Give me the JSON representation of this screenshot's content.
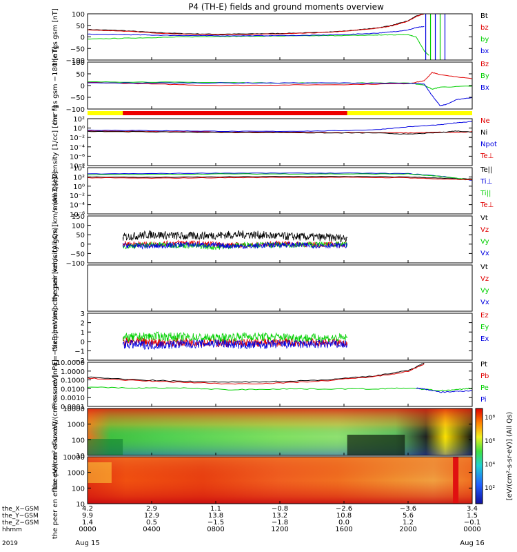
{
  "title": "P4 (TH-E) fields and ground moments overview",
  "colors": {
    "black": "#000000",
    "red": "#e00000",
    "green": "#00d000",
    "blue": "#0000e0",
    "yellow": "#ffff00",
    "barred": "#ee0000"
  },
  "chart_data": [
    {
      "type": "line",
      "ylabel": "the fgs gsm [nT]",
      "yticks": [
        "100",
        "50",
        "0",
        "−50",
        "−100"
      ],
      "ylim": [
        -100,
        100
      ],
      "series": [
        {
          "name": "Bt",
          "color": "#000000",
          "x": [
            0,
            2,
            4,
            6,
            8,
            10,
            12,
            14,
            16,
            18,
            19,
            20,
            20.5,
            21
          ],
          "y": [
            32,
            28,
            20,
            14,
            12,
            13,
            15,
            18,
            25,
            38,
            50,
            70,
            90,
            100
          ]
        },
        {
          "name": "bz",
          "color": "#e00000",
          "x": [
            0,
            2,
            4,
            6,
            8,
            10,
            12,
            14,
            16,
            18,
            19,
            20,
            20.5,
            21
          ],
          "y": [
            30,
            26,
            18,
            12,
            10,
            11,
            13,
            17,
            24,
            37,
            48,
            68,
            88,
            100
          ]
        },
        {
          "name": "by",
          "color": "#00d000",
          "x": [
            0,
            2,
            4,
            6,
            8,
            10,
            12,
            14,
            16,
            18,
            19,
            20,
            20.5,
            21,
            21.3
          ],
          "y": [
            -10,
            -6,
            -3,
            0,
            2,
            3,
            4,
            5,
            6,
            8,
            9,
            10,
            0,
            -60,
            -80
          ]
        },
        {
          "name": "bx",
          "color": "#0000e0",
          "x": [
            0,
            2,
            4,
            6,
            8,
            10,
            12,
            14,
            16,
            18,
            19,
            20,
            20.5,
            21
          ],
          "y": [
            12,
            10,
            8,
            6,
            5,
            5,
            6,
            7,
            10,
            16,
            22,
            30,
            40,
            45
          ]
        }
      ]
    },
    {
      "type": "line",
      "ylabel": "the fgs gsm −180 [nT]",
      "yticks": [
        "100",
        "50",
        "0",
        "−50",
        "−100"
      ],
      "ylim": [
        -125,
        100
      ],
      "series": [
        {
          "name": "Bz",
          "color": "#e00000",
          "x": [
            0,
            4,
            8,
            12,
            16,
            20,
            21,
            21.5,
            22,
            24
          ],
          "y": [
            3,
            -5,
            -12,
            -10,
            -8,
            -3,
            10,
            50,
            40,
            20
          ]
        },
        {
          "name": "By",
          "color": "#00d000",
          "x": [
            0,
            4,
            8,
            12,
            16,
            20,
            21,
            21.5,
            22,
            24
          ],
          "y": [
            5,
            4,
            2,
            0,
            0,
            0,
            -10,
            -30,
            -20,
            -15
          ]
        },
        {
          "name": "Bx",
          "color": "#0000e0",
          "x": [
            0,
            4,
            8,
            12,
            16,
            20,
            21,
            21.5,
            22,
            22.5,
            23,
            24
          ],
          "y": [
            0,
            0,
            0,
            0,
            0,
            -2,
            -5,
            -60,
            -110,
            -100,
            -80,
            -70
          ]
        }
      ]
    },
    {
      "type": "line",
      "ylabel": "Density [1/cc] [cm⁻³]",
      "yticks": [
        "10²",
        "10⁰",
        "10⁻²",
        "10⁻⁴",
        "10⁻⁶",
        "10⁻⁸"
      ],
      "ylim": [
        -9,
        2.5
      ],
      "log": true,
      "series": [
        {
          "name": "Ne",
          "color": "#e00000",
          "x": [
            0,
            3,
            6,
            9,
            12,
            15,
            18,
            20,
            22,
            23,
            24
          ],
          "y": [
            -0.5,
            -0.6,
            -0.7,
            -0.8,
            -0.8,
            -0.9,
            -0.9,
            -1.0,
            -0.8,
            -0.9,
            -0.7
          ]
        },
        {
          "name": "Ni",
          "color": "#000000",
          "x": [
            0,
            3,
            6,
            9,
            12,
            15,
            18,
            20,
            22,
            23,
            24
          ],
          "y": [
            -0.6,
            -0.7,
            -0.8,
            -0.9,
            -0.9,
            -1.0,
            -1.0,
            -1.3,
            -0.9,
            -0.5,
            -0.8
          ]
        },
        {
          "name": "Npot",
          "color": "#0000e0",
          "x": [
            0,
            3,
            6,
            9,
            12,
            15,
            18,
            20,
            22,
            23,
            24
          ],
          "y": [
            -0.3,
            -0.4,
            -0.5,
            -0.6,
            -0.6,
            -0.5,
            -0.2,
            0.5,
            1.0,
            1.5,
            1.8
          ]
        },
        {
          "name": "Te⊥",
          "color": "#e00000",
          "x": [],
          "y": []
        }
      ]
    },
    {
      "type": "line",
      "ylabel": "mom3 [eV]",
      "yticks": [
        "10⁴",
        "10²",
        "10⁰",
        "10⁻²",
        "10⁻⁴",
        "10⁻⁶"
      ],
      "ylim": [
        -6.5,
        4.5
      ],
      "log": true,
      "series": [
        {
          "name": "Te||",
          "color": "#000000",
          "x": [
            0,
            4,
            8,
            12,
            16,
            20,
            22,
            24
          ],
          "y": [
            2.3,
            2.2,
            2.3,
            2.4,
            2.4,
            2.3,
            2.0,
            1.8
          ]
        },
        {
          "name": "Ti⊥",
          "color": "#0000e0",
          "x": [
            0,
            4,
            8,
            12,
            16,
            20,
            22,
            24
          ],
          "y": [
            3.0,
            3.1,
            3.2,
            3.2,
            3.2,
            3.1,
            2.5,
            1.5
          ]
        },
        {
          "name": "Ti||",
          "color": "#00d000",
          "x": [
            0,
            4,
            8,
            12,
            16,
            20,
            22,
            24
          ],
          "y": [
            2.8,
            2.9,
            3.0,
            3.0,
            3.0,
            3.0,
            2.4,
            1.6
          ]
        },
        {
          "name": "Te⊥",
          "color": "#e00000",
          "x": [
            0,
            4,
            8,
            12,
            16,
            20,
            22,
            24
          ],
          "y": [
            2.1,
            2.0,
            2.1,
            2.2,
            2.2,
            2.1,
            1.8,
            1.6
          ]
        }
      ]
    },
    {
      "type": "line",
      "ylabel": "the peir velocity gsm [km/s (All Qs)]",
      "yticks": [
        "150",
        "100",
        "50",
        "0",
        "−50",
        "−100"
      ],
      "ylim": [
        -100,
        155
      ],
      "series": [
        {
          "name": "Vt",
          "color": "#000000",
          "x": [
            2.2,
            4,
            6,
            8,
            10,
            12,
            14,
            16.2
          ],
          "y": [
            40,
            55,
            45,
            50,
            55,
            45,
            40,
            35
          ]
        },
        {
          "name": "Vz",
          "color": "#e00000",
          "x": [
            2.2,
            4,
            6,
            8,
            10,
            12,
            14,
            16.2
          ],
          "y": [
            5,
            0,
            10,
            0,
            -5,
            5,
            0,
            0
          ]
        },
        {
          "name": "Vy",
          "color": "#00d000",
          "x": [
            2.2,
            4,
            6,
            8,
            10,
            12,
            14,
            16.2
          ],
          "y": [
            -10,
            0,
            -5,
            -15,
            0,
            -5,
            0,
            0
          ]
        },
        {
          "name": "Vx",
          "color": "#0000e0",
          "x": [
            2.2,
            4,
            6,
            8,
            10,
            12,
            14,
            16.2
          ],
          "y": [
            -5,
            -10,
            0,
            -5,
            -10,
            0,
            -5,
            -5
          ]
        }
      ]
    },
    {
      "type": "line",
      "ylabel": "the peer velocity gsm [km/s (All Qs)]",
      "yticks": [],
      "ylim": [
        -100,
        155
      ],
      "series": [
        {
          "name": "Vt",
          "color": "#000000",
          "x": [],
          "y": []
        },
        {
          "name": "Vz",
          "color": "#e00000",
          "x": [],
          "y": []
        },
        {
          "name": "Vy",
          "color": "#00d000",
          "x": [],
          "y": []
        },
        {
          "name": "Vx",
          "color": "#0000e0",
          "x": [],
          "y": []
        }
      ]
    },
    {
      "type": "line",
      "ylabel": "E=−VxB [mV/m]",
      "yticks": [
        "3",
        "2",
        "1",
        "0",
        "−1",
        "−2"
      ],
      "ylim": [
        -2,
        3.3
      ],
      "series": [
        {
          "name": "Ez",
          "color": "#e00000",
          "x": [
            2.2,
            4,
            6,
            8,
            10,
            12,
            14,
            16.2
          ],
          "y": [
            0.1,
            0.0,
            0.05,
            0.0,
            -0.05,
            0.0,
            0.0,
            0.0
          ]
        },
        {
          "name": "Ey",
          "color": "#00d000",
          "x": [
            2.2,
            4,
            6,
            8,
            10,
            12,
            14,
            16.2
          ],
          "y": [
            0.5,
            0.7,
            0.6,
            0.5,
            0.7,
            0.6,
            0.5,
            0.5
          ]
        },
        {
          "name": "Ex",
          "color": "#0000e0",
          "x": [
            2.2,
            4,
            6,
            8,
            10,
            12,
            14,
            16.2
          ],
          "y": [
            -0.2,
            -0.3,
            -0.2,
            -0.1,
            -0.3,
            -0.2,
            -0.2,
            -0.2
          ]
        }
      ]
    },
    {
      "type": "line",
      "ylabel": "Pressure [nPa]",
      "yticks": [
        "10.0000",
        "1.0000",
        "0.1000",
        "0.0100",
        "0.0010",
        "0.0001"
      ],
      "ylim": [
        -4,
        1.3
      ],
      "log": true,
      "series": [
        {
          "name": "Pt",
          "color": "#000000",
          "x": [
            0,
            3,
            6,
            9,
            12,
            15,
            18,
            20,
            21
          ],
          "y": [
            -0.5,
            -0.8,
            -1.0,
            -1.1,
            -1.0,
            -0.8,
            -0.3,
            0.3,
            1.2
          ]
        },
        {
          "name": "Pb",
          "color": "#e00000",
          "x": [
            0,
            3,
            6,
            9,
            12,
            15,
            18,
            20,
            21
          ],
          "y": [
            -0.6,
            -0.9,
            -1.1,
            -1.3,
            -1.2,
            -0.9,
            -0.4,
            0.2,
            1.1
          ]
        },
        {
          "name": "Pe",
          "color": "#00d000",
          "x": [
            0,
            3,
            6,
            9,
            12,
            15,
            18,
            20,
            22,
            23,
            24
          ],
          "y": [
            -1.7,
            -1.8,
            -1.8,
            -2.0,
            -1.9,
            -1.9,
            -1.9,
            -1.8,
            -2.1,
            -2.0,
            -1.8
          ]
        },
        {
          "name": "Pi",
          "color": "#0000e0",
          "x": [
            20.5,
            21,
            22,
            23,
            24
          ],
          "y": [
            -1.8,
            -1.9,
            -2.3,
            -2.2,
            -2.1
          ]
        }
      ]
    },
    {
      "type": "heatmap",
      "ylabel": "the peir en eflux eV/(cm²-s-sr-eV)",
      "yticks": [
        "10000",
        "1000",
        "100",
        "10"
      ]
    },
    {
      "type": "heatmap",
      "ylabel": "the peer en eflux eV/(cm²-s-sr-eV)",
      "yticks": [
        "10000",
        "1000",
        "100",
        "10"
      ]
    }
  ],
  "colorbar": {
    "ticks": [
      "10⁸",
      "10⁶",
      "10⁴",
      "10²"
    ],
    "label": "[eV/(cm²-s-sr-eV)] (All Qs)"
  },
  "xaxis": {
    "rows": [
      {
        "label": "the_X−GSM",
        "values": [
          "4.2",
          "2.9",
          "1.1",
          "−0.8",
          "−2.6",
          "−3.6",
          "3.4"
        ]
      },
      {
        "label": "the_Y−GSM",
        "values": [
          "9.9",
          "12.9",
          "13.8",
          "13.2",
          "10.8",
          "5.6",
          "1.5"
        ]
      },
      {
        "label": "the_Z−GSM",
        "values": [
          "1.4",
          "0.5",
          "−1.5",
          "−1.8",
          "0.0",
          "1.2",
          "−0.1"
        ]
      },
      {
        "label": "hhmm",
        "values": [
          "0000",
          "0400",
          "0800",
          "1200",
          "1600",
          "2000",
          "0000"
        ]
      }
    ],
    "year": "2019",
    "date_start": "Aug 15",
    "date_end": "Aug 16"
  }
}
